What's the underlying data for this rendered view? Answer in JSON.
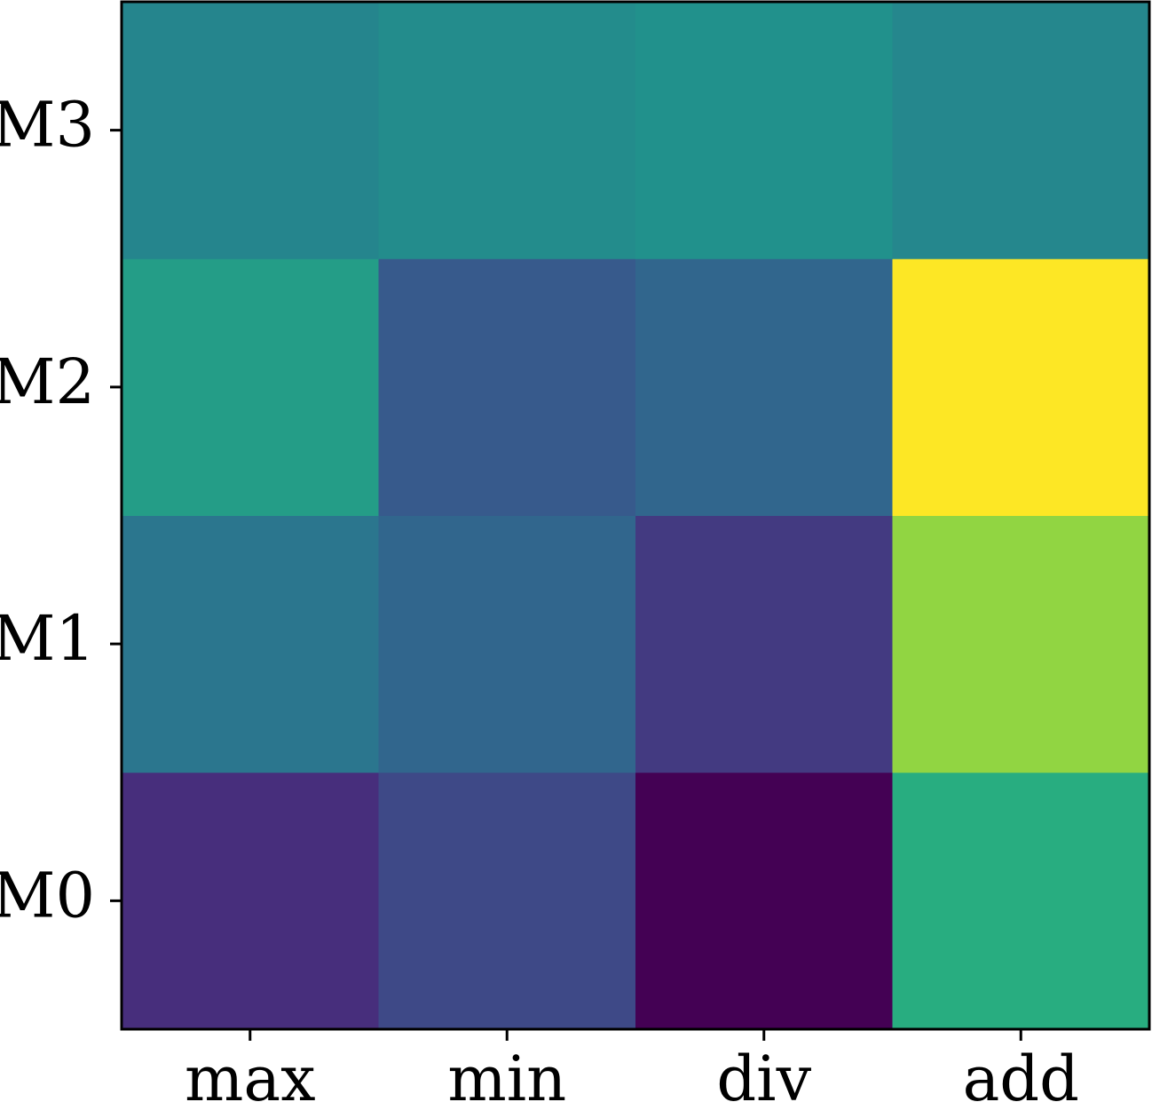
{
  "chart_data": {
    "type": "heatmap",
    "x_categories": [
      "max",
      "min",
      "div",
      "add"
    ],
    "y_categories": [
      "M0",
      "M1",
      "M2",
      "M3"
    ],
    "values": [
      [
        0.13,
        0.22,
        0.0,
        0.62
      ],
      [
        0.39,
        0.33,
        0.17,
        0.83
      ],
      [
        0.55,
        0.28,
        0.33,
        1.0
      ],
      [
        0.45,
        0.48,
        0.5,
        0.46
      ]
    ],
    "colormap": "viridis"
  }
}
